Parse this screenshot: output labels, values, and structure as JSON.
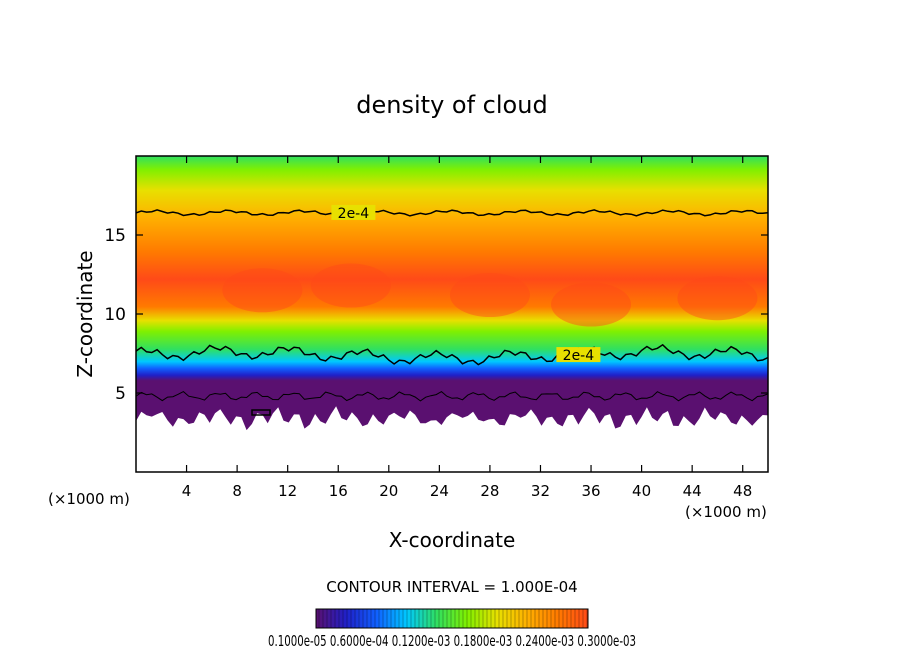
{
  "chart_data": {
    "type": "heatmap",
    "title": "density of cloud",
    "xlabel": "X-coordinate",
    "ylabel": "Z-coordinate",
    "x_unit_left": "(×1000 m)",
    "x_unit_right": "(×1000 m)",
    "xlim": [
      0,
      50
    ],
    "ylim": [
      0,
      20
    ],
    "x_ticks": [
      4,
      8,
      12,
      16,
      20,
      24,
      28,
      32,
      36,
      40,
      44,
      48
    ],
    "y_ticks": [
      5,
      10,
      15
    ],
    "cloud_base_z": 3.6,
    "cloud_top_z": 20,
    "core_z": [
      9,
      13
    ],
    "contours": [
      {
        "label": "2e-4",
        "level": 0.0002,
        "z": 16.4,
        "label_x": 17.2
      },
      {
        "label": "2e-4",
        "level": 0.0002,
        "z": 7.4,
        "label_x": 35.0
      }
    ],
    "contour_interval": "CONTOUR INTERVAL = 1.000E-04",
    "colorbar_labels": "0.1000e-05 0.6000e-04 0.1200e-03 0.1800e-03 0.2400e-03 0.3000e-03",
    "grid": false
  },
  "colors": {
    "scale": [
      "#5a1070",
      "#2020c8",
      "#1060ff",
      "#00c8ff",
      "#30e060",
      "#80f000",
      "#e8e000",
      "#ffb000",
      "#ff7a00",
      "#ff4a18"
    ]
  }
}
